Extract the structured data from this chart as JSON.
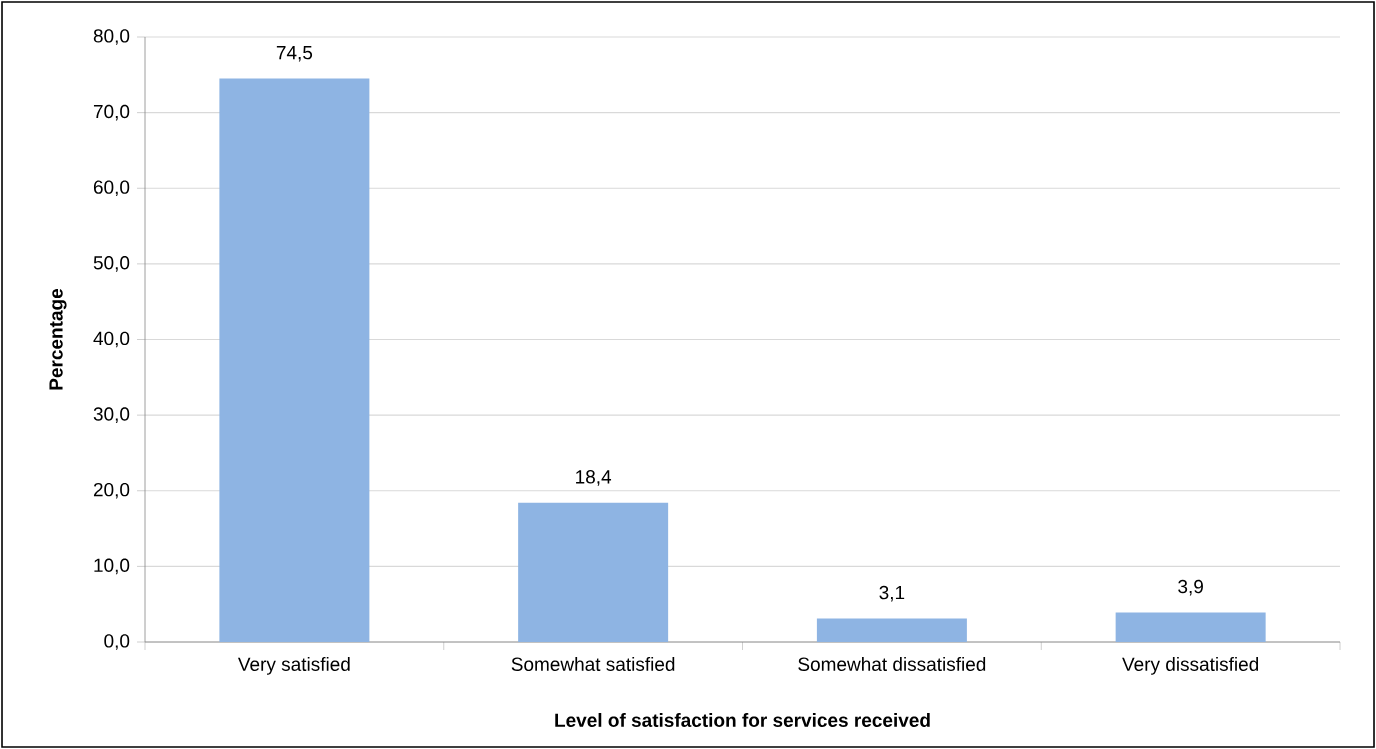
{
  "chart_data": {
    "type": "bar",
    "xlabel": "Level of satisfaction for services received",
    "ylabel": "Percentage",
    "categories": [
      "Very satisfied",
      "Somewhat satisfied",
      "Somewhat dissatisfied",
      "Very dissatisfied"
    ],
    "values": [
      74.5,
      18.4,
      3.1,
      3.9
    ],
    "value_labels": [
      "74,5",
      "18,4",
      "3,1",
      "3,9"
    ],
    "color": "#8eb4e3",
    "ylim": [
      0,
      80
    ],
    "yticks": [
      {
        "value": 0,
        "label": "0,0"
      },
      {
        "value": 10,
        "label": "10,0"
      },
      {
        "value": 20,
        "label": "20,0"
      },
      {
        "value": 30,
        "label": "30,0"
      },
      {
        "value": 40,
        "label": "40,0"
      },
      {
        "value": 50,
        "label": "50,0"
      },
      {
        "value": 60,
        "label": "60,0"
      },
      {
        "value": 70,
        "label": "70,0"
      },
      {
        "value": 80,
        "label": "80,0"
      }
    ],
    "grid": "y"
  }
}
